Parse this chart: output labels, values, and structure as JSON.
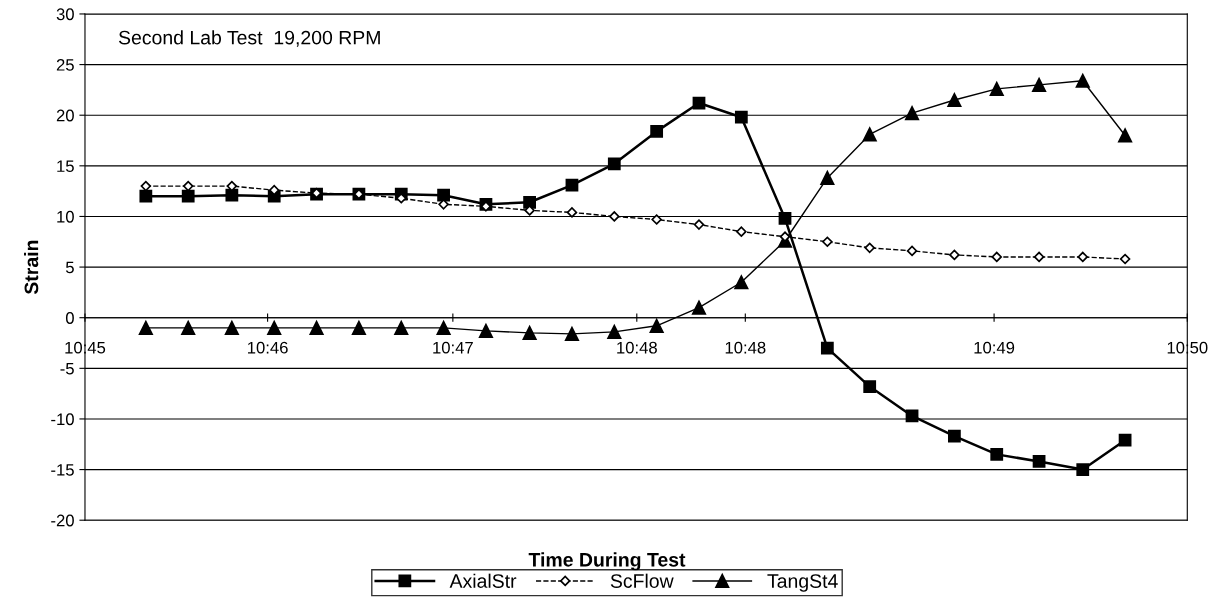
{
  "chart_data": {
    "type": "line",
    "xlabel": "Time During Test",
    "ylabel": "Strain",
    "annotations": [
      "Second Lab Test  19,200 RPM"
    ],
    "x": [
      10.7546,
      10.7578,
      10.7611,
      10.7643,
      10.7675,
      10.7707,
      10.7739,
      10.7771,
      10.7803,
      10.7836,
      10.7868,
      10.79,
      10.7932,
      10.7964,
      10.7996,
      10.8029,
      10.8061,
      10.8093,
      10.8125,
      10.8157,
      10.8189,
      10.8221,
      10.8254,
      10.8286
    ],
    "series": [
      {
        "name": "AxialStr",
        "color": "#000000",
        "marker": "square",
        "line_style": "solid",
        "values": [
          12.0,
          12.0,
          12.1,
          12.0,
          12.2,
          12.2,
          12.2,
          12.1,
          11.2,
          11.4,
          13.1,
          15.2,
          18.4,
          21.2,
          19.8,
          9.8,
          -3.0,
          -6.8,
          -9.7,
          -11.7,
          -13.5,
          -14.2,
          -15.0,
          -12.1
        ]
      },
      {
        "name": "ScFlow",
        "color": "#000000",
        "marker": "diamond",
        "line_style": "dashed",
        "values": [
          13.0,
          13.0,
          13.0,
          12.6,
          12.3,
          12.2,
          11.8,
          11.2,
          11.0,
          10.6,
          10.4,
          10.0,
          9.7,
          9.2,
          8.5,
          8.0,
          7.5,
          6.9,
          6.6,
          6.2,
          6.0,
          6.0,
          6.0,
          5.8
        ]
      },
      {
        "name": "TangSt4",
        "color": "#000000",
        "marker": "triangle",
        "line_style": "solid",
        "values": [
          -1.0,
          -1.0,
          -1.0,
          -1.0,
          -1.0,
          -1.0,
          -1.0,
          -1.0,
          -1.3,
          -1.5,
          -1.6,
          -1.4,
          -0.8,
          1.0,
          3.5,
          7.6,
          13.8,
          18.1,
          20.2,
          21.5,
          22.6,
          23.0,
          23.4,
          18.0
        ]
      }
    ],
    "xlim": [
      10.75,
      10.8333
    ],
    "xticks": [
      {
        "value": 10.75,
        "label": "10:45"
      },
      {
        "value": 10.7638,
        "label": "10:46"
      },
      {
        "value": 10.7778,
        "label": "10:47"
      },
      {
        "value": 10.7917,
        "label": "10:48"
      },
      {
        "value": 10.7999,
        "label": "10:48"
      },
      {
        "value": 10.8187,
        "label": "10:49"
      },
      {
        "value": 10.8333,
        "label": "10:50"
      }
    ],
    "ylim": [
      -20,
      30
    ],
    "yticks": [
      -20,
      -15,
      -10,
      -5,
      0,
      5,
      10,
      15,
      20,
      25,
      30
    ],
    "grid": "y",
    "legend": "bottom"
  }
}
